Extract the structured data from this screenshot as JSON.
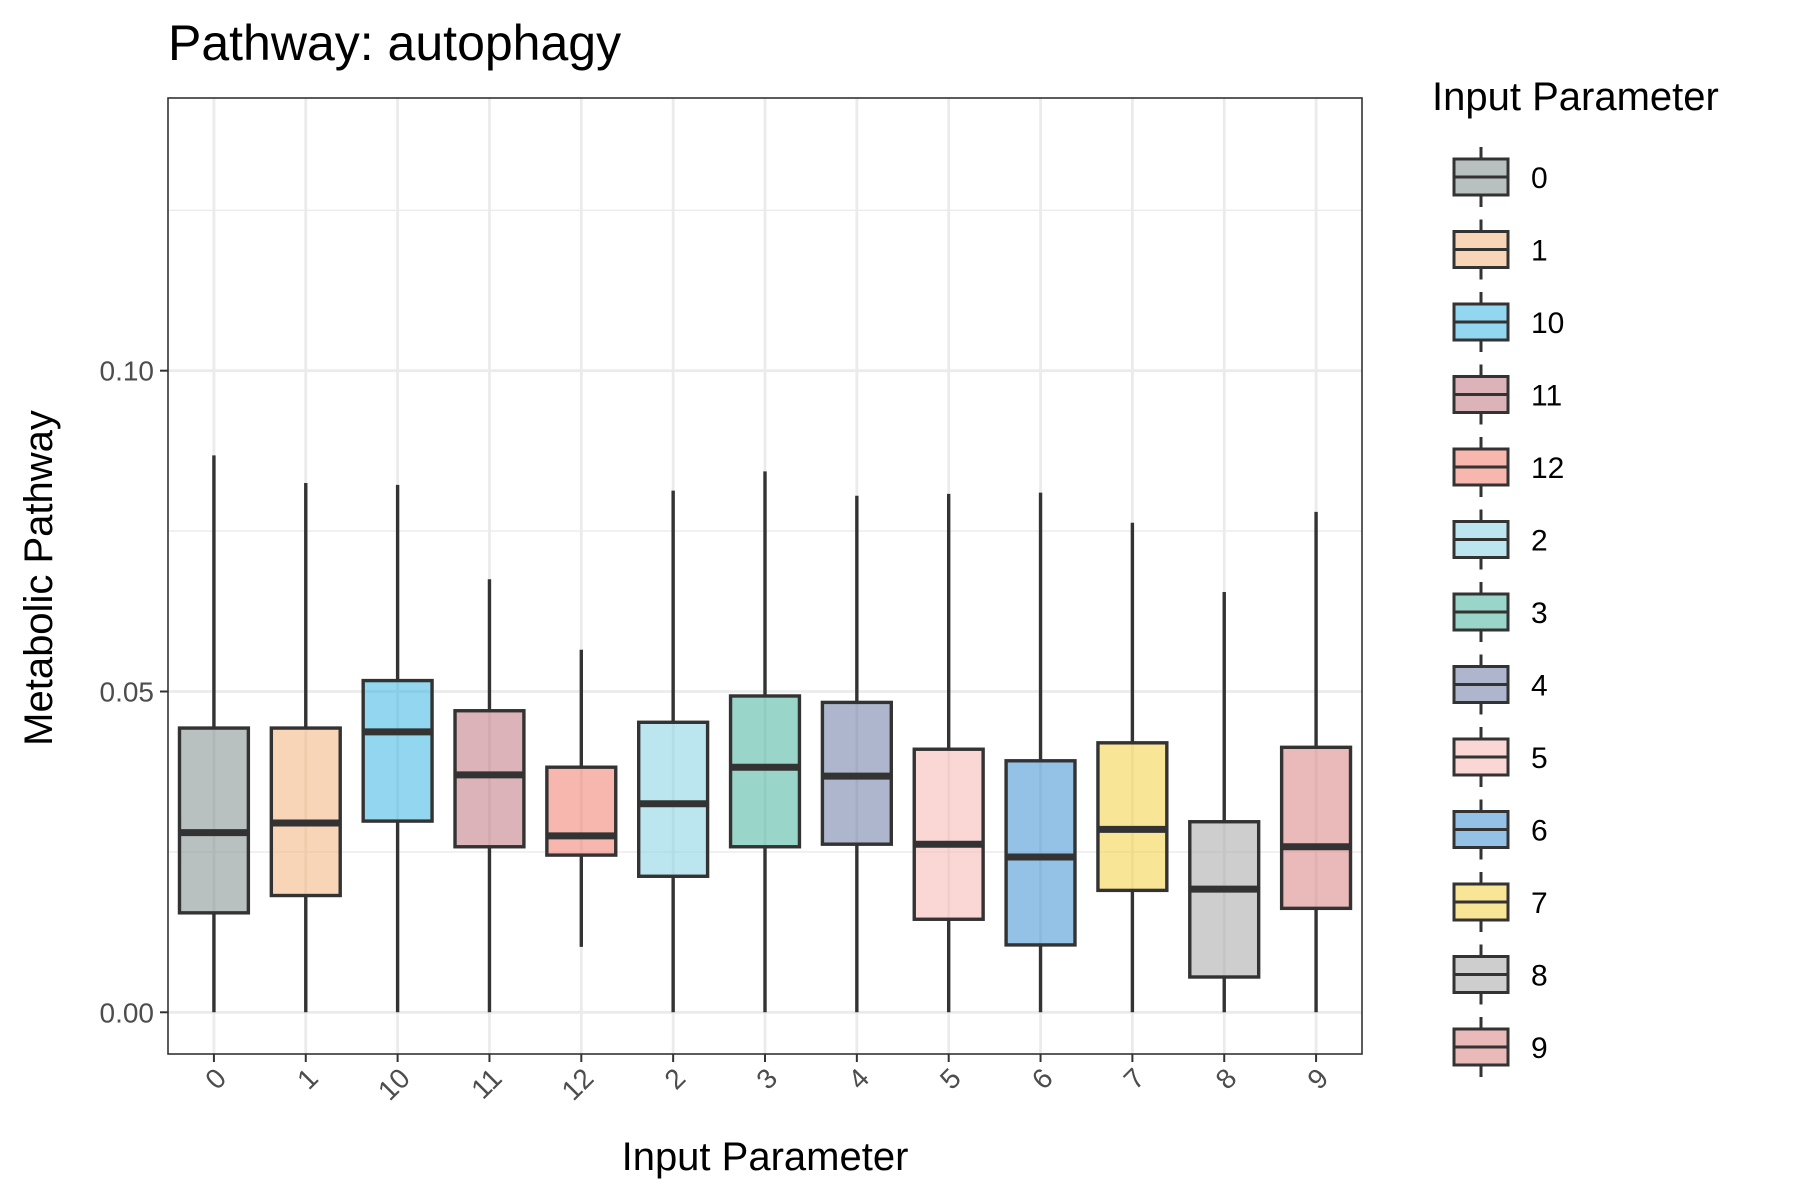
{
  "chart_data": {
    "type": "boxplot",
    "title": "Pathway: autophagy",
    "xlabel": "Input Parameter",
    "ylabel": "Metabolic Pathway",
    "ylim": [
      -0.0065,
      0.1425
    ],
    "yticks": [
      0.0,
      0.05,
      0.1
    ],
    "ytick_labels": [
      "0.00",
      "0.05",
      "0.10"
    ],
    "grid": true,
    "legend": {
      "title": "Input Parameter",
      "position": "right"
    },
    "categories": [
      "0",
      "1",
      "10",
      "11",
      "12",
      "2",
      "3",
      "4",
      "5",
      "6",
      "7",
      "8",
      "9"
    ],
    "series": [
      {
        "name": "0",
        "color": "#7f8c8d",
        "min": 0.0,
        "q1": 0.0155,
        "median": 0.028,
        "q3": 0.0443,
        "max": 0.0868
      },
      {
        "name": "1",
        "color": "#f0b27a",
        "min": 0.0,
        "q1": 0.0182,
        "median": 0.0295,
        "q3": 0.0443,
        "max": 0.0825
      },
      {
        "name": "10",
        "color": "#3ab4e4",
        "min": 0.0,
        "q1": 0.0298,
        "median": 0.0437,
        "q3": 0.0517,
        "max": 0.0822
      },
      {
        "name": "11",
        "color": "#c0747e",
        "min": 0.0,
        "q1": 0.0258,
        "median": 0.037,
        "q3": 0.047,
        "max": 0.0675
      },
      {
        "name": "12",
        "color": "#f17a6c",
        "min": 0.0102,
        "q1": 0.0245,
        "median": 0.0275,
        "q3": 0.0382,
        "max": 0.0565
      },
      {
        "name": "2",
        "color": "#85d1e2",
        "min": 0.0,
        "q1": 0.0212,
        "median": 0.0325,
        "q3": 0.0452,
        "max": 0.0813
      },
      {
        "name": "3",
        "color": "#45b39d",
        "min": 0.0,
        "q1": 0.0258,
        "median": 0.0382,
        "q3": 0.0493,
        "max": 0.0843
      },
      {
        "name": "4",
        "color": "#6a7aa3",
        "min": 0.0,
        "q1": 0.0262,
        "median": 0.0368,
        "q3": 0.0483,
        "max": 0.0805
      },
      {
        "name": "5",
        "color": "#f5b7b1",
        "min": 0.0,
        "q1": 0.0145,
        "median": 0.0262,
        "q3": 0.041,
        "max": 0.0808
      },
      {
        "name": "6",
        "color": "#3d8fd4",
        "min": 0.0,
        "q1": 0.0105,
        "median": 0.0242,
        "q3": 0.0392,
        "max": 0.081
      },
      {
        "name": "7",
        "color": "#f4d03f",
        "min": 0.0,
        "q1": 0.019,
        "median": 0.0285,
        "q3": 0.042,
        "max": 0.0763
      },
      {
        "name": "8",
        "color": "#a6a6a6",
        "min": 0.0,
        "q1": 0.0055,
        "median": 0.0192,
        "q3": 0.0297,
        "max": 0.0655
      },
      {
        "name": "9",
        "color": "#d98082",
        "min": 0.0,
        "q1": 0.0162,
        "median": 0.0258,
        "q3": 0.0413,
        "max": 0.078
      }
    ]
  }
}
